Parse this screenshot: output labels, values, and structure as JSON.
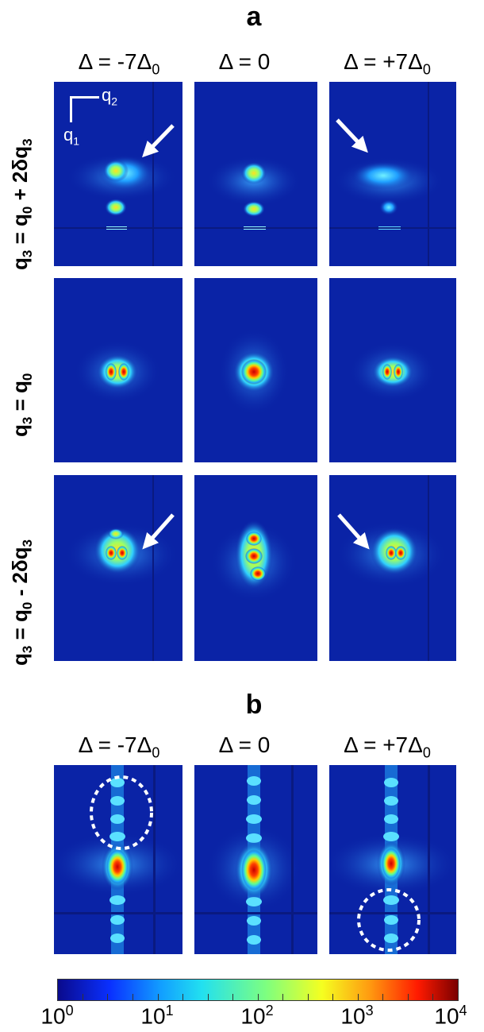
{
  "panel_a": {
    "letter": "a",
    "columns": [
      {
        "delta": "Δ = -7Δ",
        "sub": "0"
      },
      {
        "delta": "Δ = 0",
        "sub": ""
      },
      {
        "delta": "Δ = +7Δ",
        "sub": "0"
      }
    ],
    "rows": [
      {
        "q": "q",
        "q_sub": "3",
        "mid": " = q",
        "mid_sub": "0",
        "tail": " + 2δq",
        "tail_sub": "3"
      },
      {
        "q": "q",
        "q_sub": "3",
        "mid": " = q",
        "mid_sub": "0",
        "tail": "",
        "tail_sub": ""
      },
      {
        "q": "q",
        "q_sub": "3",
        "mid": " = q",
        "mid_sub": "0",
        "tail": " - 2δq",
        "tail_sub": "3"
      }
    ],
    "axes": {
      "q2": "q",
      "q2_sub": "2",
      "q1": "q",
      "q1_sub": "1"
    }
  },
  "panel_b": {
    "letter": "b",
    "columns": [
      {
        "delta": "Δ = -7Δ",
        "sub": "0"
      },
      {
        "delta": "Δ = 0",
        "sub": ""
      },
      {
        "delta": "Δ = +7Δ",
        "sub": "0"
      }
    ]
  },
  "colorbar": {
    "labels": [
      {
        "base": "10",
        "exp": "0"
      },
      {
        "base": "10",
        "exp": "1"
      },
      {
        "base": "10",
        "exp": "2"
      },
      {
        "base": "10",
        "exp": "3"
      },
      {
        "base": "10",
        "exp": "4"
      }
    ]
  }
}
